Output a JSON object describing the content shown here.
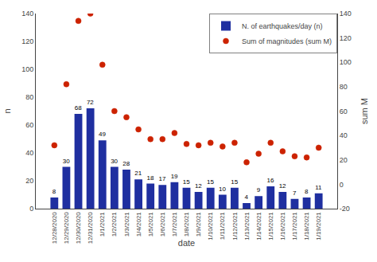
{
  "chart_data": {
    "type": "bar",
    "xlabel": "date",
    "ylabel": "n",
    "y2label": "sum M",
    "categories": [
      "12/28/2020",
      "12/29/2020",
      "12/30/2020",
      "12/31/2020",
      "1/1/2021",
      "1/2/2021",
      "1/3/2021",
      "1/4/2021",
      "1/5/2021",
      "1/6/2021",
      "1/7/2021",
      "1/8/2021",
      "1/9/2021",
      "1/10/2021",
      "1/11/2021",
      "1/12/2021",
      "1/13/2021",
      "1/14/2021",
      "1/15/2021",
      "1/16/2021",
      "1/17/2021",
      "1/18/2021",
      "1/19/2021"
    ],
    "series": [
      {
        "name": "N. of earthquakes/day (n)",
        "type": "bar",
        "color": "#1F2FA0",
        "values": [
          8,
          30,
          68,
          72,
          49,
          30,
          28,
          21,
          18,
          17,
          19,
          15,
          12,
          15,
          10,
          15,
          4,
          9,
          16,
          12,
          7,
          8,
          11
        ]
      },
      {
        "name": "Sum of magnitudes (sum M)",
        "type": "scatter",
        "color": "#CC2200",
        "marker": "circle",
        "axis": "y2",
        "values": [
          32,
          82,
          134,
          140,
          98,
          60,
          55,
          45,
          37,
          37,
          42,
          33,
          32,
          34,
          31,
          34,
          18,
          25,
          34,
          27,
          23,
          22,
          30
        ]
      }
    ],
    "data_labels": true,
    "ylim": [
      0,
      140
    ],
    "yticks": [
      0,
      20,
      40,
      60,
      80,
      100,
      120,
      140
    ],
    "y2lim": [
      -20,
      140
    ],
    "y2ticks": [
      -20,
      0,
      20,
      40,
      60,
      80,
      100,
      120,
      140
    ],
    "grid": false,
    "legend": "upper right"
  }
}
